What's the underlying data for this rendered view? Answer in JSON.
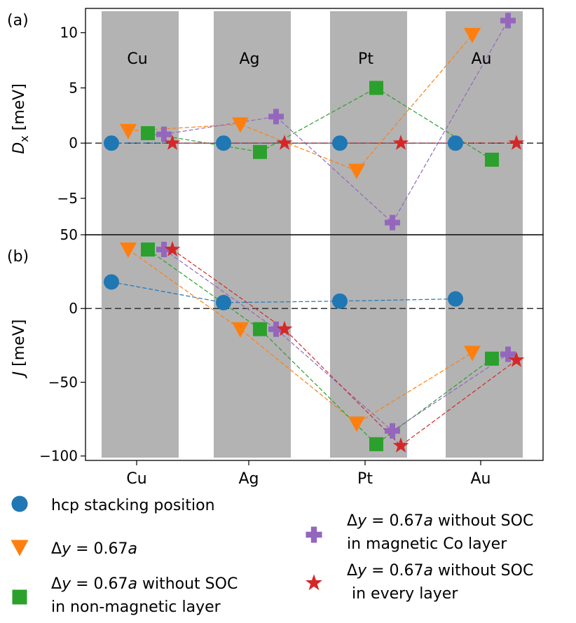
{
  "chart_data": [
    {
      "panel": "a",
      "panel_label": "(a)",
      "type": "scatter",
      "categories": [
        "Cu",
        "Ag",
        "Pt",
        "Au"
      ],
      "ylabel": "D_x [meV]",
      "ylabel_main": "D",
      "ylabel_sub": "x",
      "ylabel_unit": " [meV]",
      "ylim": [
        -8.3,
        12.2
      ],
      "yticks": [
        10,
        5,
        0,
        -5
      ],
      "ytick_labels": [
        "10",
        "5",
        "0",
        "−5"
      ],
      "zero_line": true,
      "category_labels_inside": true,
      "series": [
        {
          "key": "hcp",
          "values": [
            0,
            0,
            0,
            0
          ]
        },
        {
          "key": "dy",
          "values": [
            1.1,
            1.7,
            -2.5,
            9.8
          ]
        },
        {
          "key": "dy_nonmag",
          "values": [
            0.9,
            -0.8,
            5.0,
            -1.5
          ]
        },
        {
          "key": "dy_mag",
          "values": [
            0.8,
            2.4,
            -7.2,
            11.1
          ]
        },
        {
          "key": "dy_all",
          "values": [
            0.0,
            0.0,
            0.0,
            0.0
          ]
        }
      ]
    },
    {
      "panel": "b",
      "panel_label": "(b)",
      "type": "scatter",
      "categories": [
        "Cu",
        "Ag",
        "Pt",
        "Au"
      ],
      "ylabel": "J [meV]",
      "ylabel_main": "J",
      "ylabel_unit": " [meV]",
      "ylim": [
        -103,
        50
      ],
      "yticks": [
        50,
        0,
        -50,
        -100
      ],
      "ytick_labels": [
        "50",
        "0",
        "−50",
        "−100"
      ],
      "zero_line": true,
      "series": [
        {
          "key": "hcp",
          "values": [
            18,
            4,
            5,
            6.5
          ]
        },
        {
          "key": "dy",
          "values": [
            40,
            -14,
            -78,
            -30
          ]
        },
        {
          "key": "dy_nonmag",
          "values": [
            40,
            -14,
            -92,
            -34
          ]
        },
        {
          "key": "dy_mag",
          "values": [
            40,
            -14,
            -83,
            -31
          ]
        },
        {
          "key": "dy_all",
          "values": [
            40,
            -14,
            -93,
            -35
          ]
        }
      ]
    }
  ],
  "legend": {
    "placement": "bottom",
    "entries": [
      {
        "key": "hcp",
        "marker": "circle",
        "color": "#1f77b4",
        "line1": "hcp stacking position",
        "line2": ""
      },
      {
        "key": "dy",
        "marker": "triangle-down",
        "color": "#ff7f0e",
        "line1": "Δy = 0.67a",
        "line2": ""
      },
      {
        "key": "dy_nonmag",
        "marker": "square",
        "color": "#2ca02c",
        "line1": "Δy = 0.67a without SOC",
        "line2": "in non-magnetic layer"
      },
      {
        "key": "dy_mag",
        "marker": "plus",
        "color": "#9467bd",
        "line1": "Δy = 0.67a without SOC",
        "line2": "in magnetic Co layer"
      },
      {
        "key": "dy_all",
        "marker": "star",
        "color": "#d62728",
        "line1": "Δy = 0.67a without SOC",
        "line2": " in every layer"
      }
    ]
  }
}
